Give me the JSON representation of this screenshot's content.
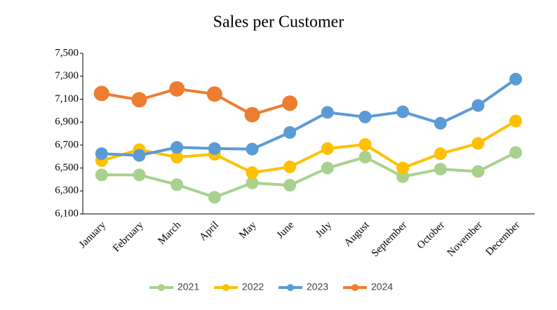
{
  "chart_data": {
    "type": "line",
    "title": "Sales per Customer",
    "categories": [
      "January",
      "February",
      "March",
      "April",
      "May",
      "June",
      "July",
      "August",
      "September",
      "October",
      "November",
      "December"
    ],
    "series": [
      {
        "name": "2021",
        "color": "#a9d18e",
        "values": [
          6440,
          6440,
          6355,
          6245,
          6370,
          6350,
          6500,
          6595,
          6425,
          6490,
          6470,
          6635
        ]
      },
      {
        "name": "2022",
        "color": "#ffc000",
        "values": [
          6565,
          6660,
          6595,
          6620,
          6460,
          6510,
          6670,
          6705,
          6500,
          6625,
          6715,
          6910
        ]
      },
      {
        "name": "2023",
        "color": "#5b9bd5",
        "values": [
          6625,
          6610,
          6680,
          6670,
          6665,
          6810,
          6985,
          6945,
          6990,
          6890,
          7045,
          7275
        ]
      },
      {
        "name": "2024",
        "color": "#ed7d31",
        "values": [
          7150,
          7095,
          7190,
          7145,
          6965,
          7065,
          null,
          null,
          null,
          null,
          null,
          null
        ]
      }
    ],
    "ylim": [
      6100,
      7500
    ],
    "yticks": [
      {
        "value": 6100,
        "label": "6,100"
      },
      {
        "value": 6300,
        "label": "6,300"
      },
      {
        "value": 6500,
        "label": "6,500"
      },
      {
        "value": 6700,
        "label": "6,700"
      },
      {
        "value": 6900,
        "label": "6,900"
      },
      {
        "value": 7100,
        "label": "7,100"
      },
      {
        "value": 7300,
        "label": "7,300"
      },
      {
        "value": 7500,
        "label": "7,500"
      }
    ],
    "legend": "bottom"
  }
}
